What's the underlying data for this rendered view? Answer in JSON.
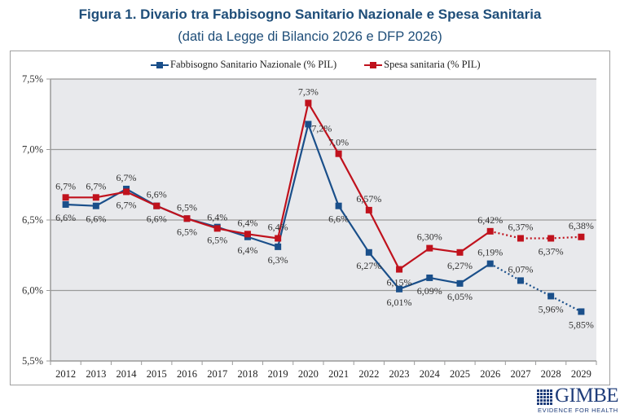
{
  "header": {
    "title": "Figura 1. Divario tra Fabbisogno Sanitario Nazionale e Spesa Sanitaria",
    "subtitle": "(dati da Legge di Bilancio 2026 e DFP 2026)"
  },
  "logo": {
    "name": "GIMBE",
    "tagline": "EVIDENCE FOR HEALTH",
    "color": "#1f3d7a"
  },
  "chart_data": {
    "type": "line",
    "title": "Figura 1. Divario tra Fabbisogno Sanitario Nazionale e Spesa Sanitaria",
    "subtitle": "(dati da Legge di Bilancio 2026 e DFP 2026)",
    "xlabel": "",
    "ylabel": "",
    "categories": [
      "2012",
      "2013",
      "2014",
      "2015",
      "2016",
      "2017",
      "2018",
      "2019",
      "2020",
      "2021",
      "2022",
      "2023",
      "2024",
      "2025",
      "2026",
      "2027",
      "2028",
      "2029"
    ],
    "ylim": [
      5.5,
      7.5
    ],
    "yticks": [
      5.5,
      6.0,
      6.5,
      7.0,
      7.5
    ],
    "ytick_labels": [
      "5,5%",
      "6,0%",
      "6,5%",
      "7,0%",
      "7,5%"
    ],
    "grid": "horizontal",
    "legend_position": "top",
    "projection_start_index": 14,
    "series": [
      {
        "name": "Fabbisogno Sanitario Nazionale (% PIL)",
        "color": "#1a4f8a",
        "values": [
          6.61,
          6.6,
          6.72,
          6.6,
          6.51,
          6.45,
          6.38,
          6.31,
          7.18,
          6.6,
          6.27,
          6.01,
          6.09,
          6.05,
          6.19,
          6.07,
          5.96,
          5.85
        ],
        "labels": [
          "6,6%",
          "6,6%",
          "6,7%",
          "6,6%",
          "6,5%",
          "6,5%",
          "6,4%",
          "6,3%",
          "7,2%",
          "6,6%",
          "6,27%",
          "6,01%",
          "6,09%",
          "6,05%",
          "6,19%",
          "6,07%",
          "5,96%",
          "5,85%"
        ],
        "label_position": [
          "below",
          "below",
          "above",
          "below",
          "below",
          "below",
          "below",
          "below",
          "right",
          "below",
          "below",
          "below",
          "below",
          "below",
          "above",
          "above",
          "below",
          "below"
        ]
      },
      {
        "name": "Spesa sanitaria (% PIL)",
        "color": "#c0121d",
        "values": [
          6.66,
          6.66,
          6.7,
          6.6,
          6.51,
          6.44,
          6.4,
          6.37,
          7.33,
          6.97,
          6.57,
          6.15,
          6.3,
          6.27,
          6.42,
          6.37,
          6.37,
          6.38
        ],
        "labels": [
          "6,7%",
          "6,7%",
          "6,7%",
          "6,6%",
          "6,5%",
          "6,4%",
          "6,4%",
          "6,4%",
          "7,3%",
          "7,0%",
          "6,57%",
          "6,15%",
          "6,30%",
          "6,27%",
          "6,42%",
          "6,37%",
          "6,37%",
          "6,38%"
        ],
        "label_position": [
          "above",
          "above",
          "below",
          "above",
          "above",
          "above",
          "above",
          "above",
          "above",
          "above",
          "above",
          "below",
          "above",
          "below",
          "above",
          "above",
          "below",
          "above"
        ]
      }
    ]
  }
}
